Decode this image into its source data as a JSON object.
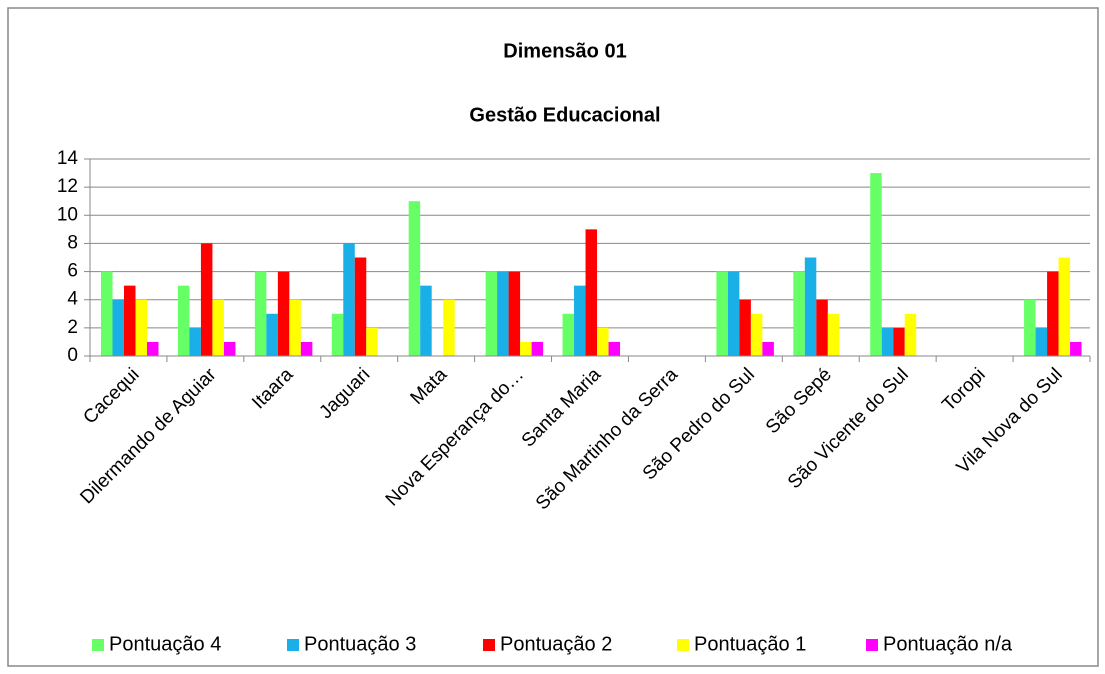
{
  "chart_data": {
    "type": "bar",
    "title": "Dimensão 01",
    "subtitle": "Gestão Educacional",
    "categories": [
      "Cacequi",
      "Dilermando de Aguiar",
      "Itaara",
      "Jaguari",
      "Mata",
      "Nova Esperança do…",
      "Santa Maria",
      "São Martinho da Serra",
      "São Pedro do Sul",
      "São Sepé",
      "São Vicente do Sul",
      "Toropi",
      "Vila Nova do Sul"
    ],
    "series": [
      {
        "name": "Pontuação 4",
        "color": "#66ff66",
        "values": [
          6,
          5,
          6,
          3,
          11,
          6,
          3,
          0,
          6,
          6,
          13,
          0,
          4
        ]
      },
      {
        "name": "Pontuação 3",
        "color": "#1aafe6",
        "values": [
          4,
          2,
          3,
          8,
          5,
          6,
          5,
          0,
          6,
          7,
          2,
          0,
          2
        ]
      },
      {
        "name": "Pontuação 2",
        "color": "#ff0000",
        "values": [
          5,
          8,
          6,
          7,
          0,
          6,
          9,
          0,
          4,
          4,
          2,
          0,
          6
        ]
      },
      {
        "name": "Pontuação 1",
        "color": "#ffff00",
        "values": [
          4,
          4,
          4,
          2,
          4,
          1,
          2,
          0,
          3,
          3,
          3,
          0,
          7
        ]
      },
      {
        "name": "Pontuação n/a",
        "color": "#ff00ff",
        "values": [
          1,
          1,
          1,
          0,
          0,
          1,
          1,
          0,
          1,
          0,
          0,
          0,
          1
        ]
      }
    ],
    "ylim": [
      0,
      14
    ],
    "yticks": [
      0,
      2,
      4,
      6,
      8,
      10,
      12,
      14
    ],
    "grid": true,
    "legend": "bottom"
  }
}
